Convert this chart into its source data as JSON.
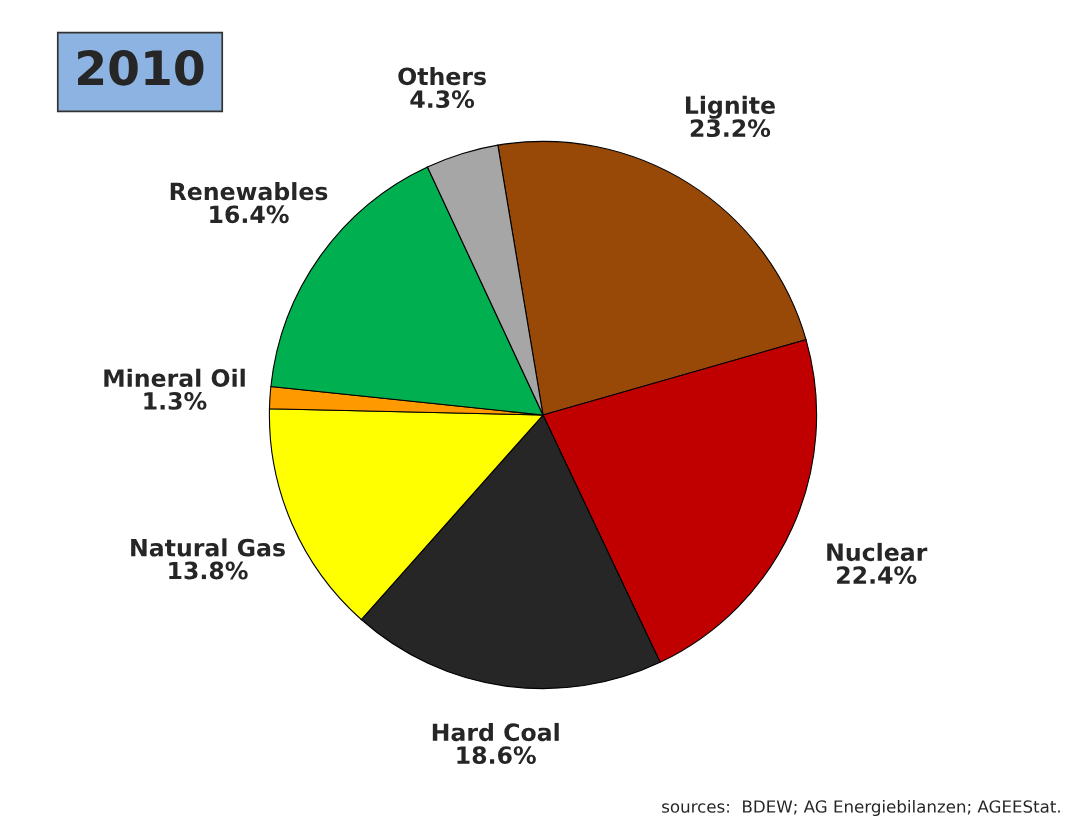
{
  "chart_data": {
    "type": "pie",
    "title": "2010",
    "categories": [
      "Lignite",
      "Nuclear",
      "Hard Coal",
      "Natural Gas",
      "Mineral Oil",
      "Renewables",
      "Others"
    ],
    "values": [
      23.2,
      22.4,
      18.6,
      13.8,
      1.3,
      16.4,
      4.3
    ],
    "colors": [
      "#984807",
      "#c00000",
      "#262626",
      "#ffff00",
      "#ff9900",
      "#00b050",
      "#a6a6a6"
    ],
    "value_labels": [
      "23.2%",
      "22.4%",
      "18.6%",
      "13.8%",
      "1.3%",
      "16.4%",
      "4.3%"
    ],
    "annotations": [
      "sources:  BDEW; AG Energiebilanzen; AGEEStat."
    ]
  }
}
